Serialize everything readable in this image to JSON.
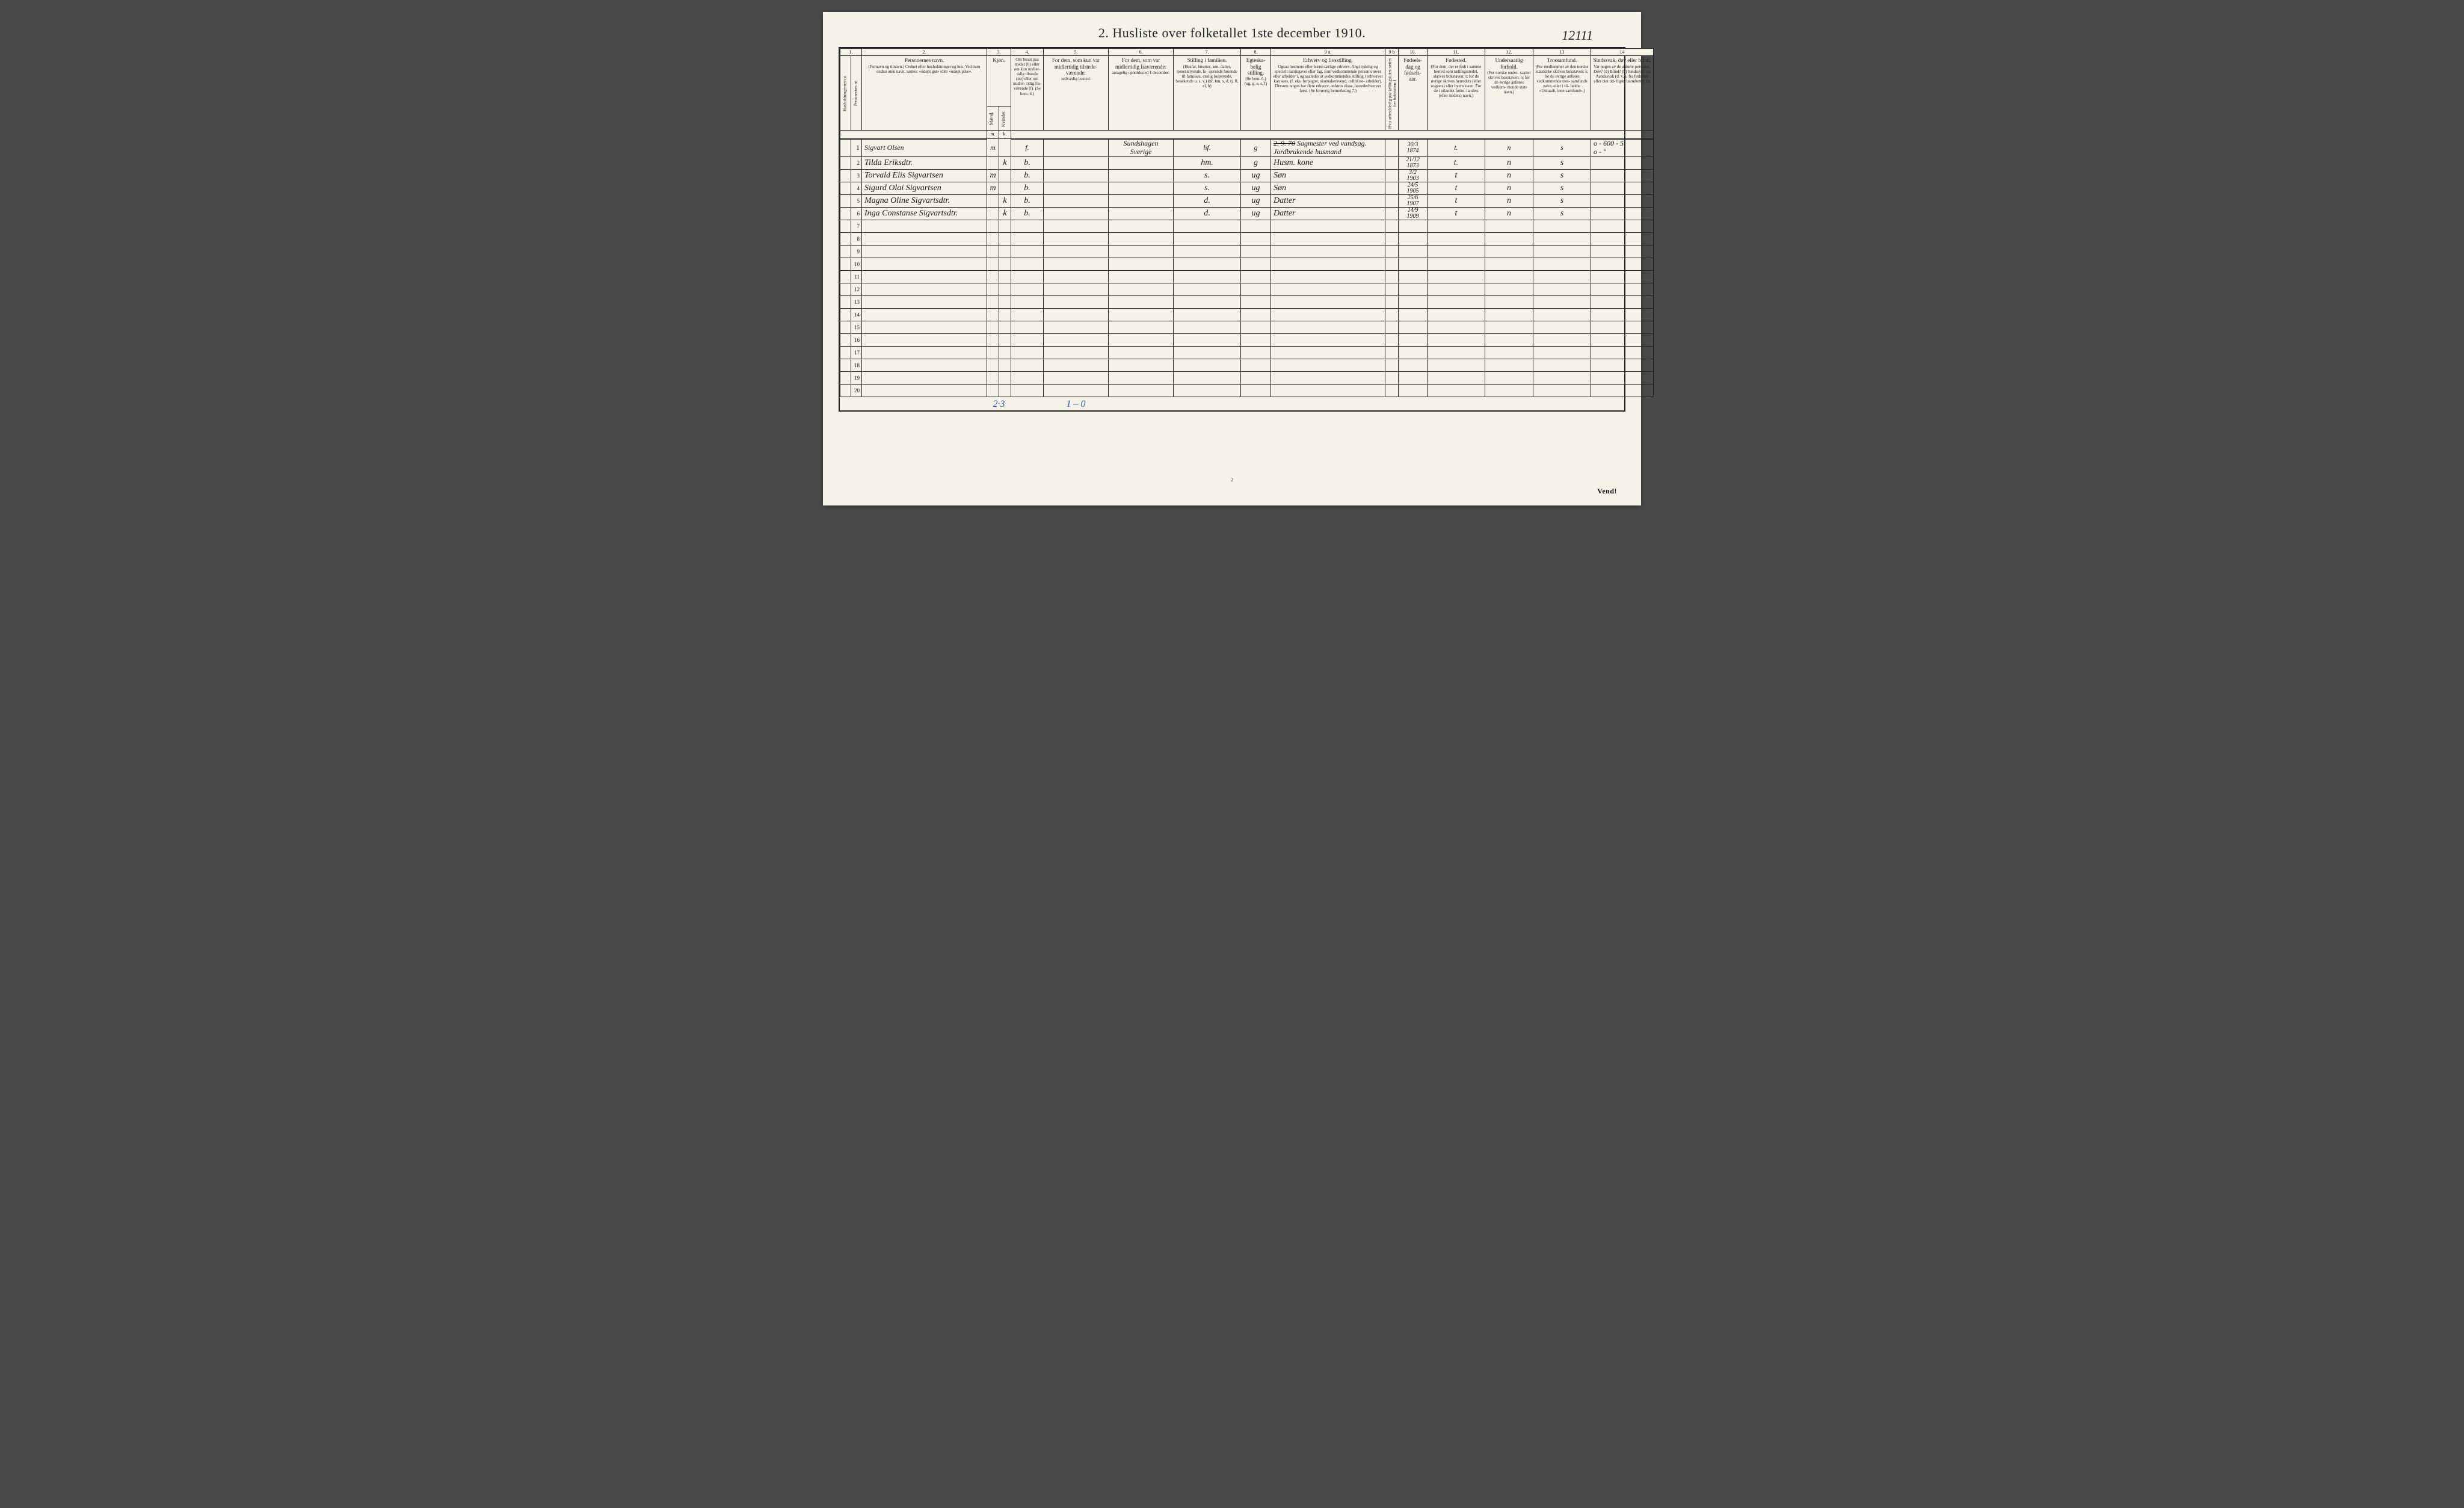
{
  "corner_note": "12111",
  "title": "2.  Husliste over folketallet 1ste december 1910.",
  "colnums": [
    "1.",
    "",
    "2.",
    "3.",
    "4.",
    "5.",
    "6.",
    "7.",
    "8.",
    "9 a.",
    "9 b",
    "10.",
    "11.",
    "12.",
    "13",
    "14"
  ],
  "headers": {
    "c1": {
      "main": "Husholdningernes nr."
    },
    "c1b": {
      "main": "Personernes nr."
    },
    "c2": {
      "main": "Personernes navn.",
      "sub": "(Fornavn og tilnavn.)\nOrdnet efter husholdninger og hus.\nVed barn endnu uten navn, sættes: «udøpt gut»\neller «udøpt pike»."
    },
    "c3": {
      "main": "Kjøn.",
      "sub_left": "Mænd.",
      "sub_right": "Kvinder."
    },
    "c4": {
      "main": "Om bosat\npaa stedet\n(b) eller om\nkun midler-\ntidig tilstede\n(mt) eller\nom midler-\ntidig fra-\nværende (f).\n(Se bem. 4.)"
    },
    "c5": {
      "main": "For dem, som kun var\nmidlertidig tilstede-\nværende:",
      "sub": "sedvanlig bosted."
    },
    "c6": {
      "main": "For dem, som var\nmidlertidig\nfraværende:",
      "sub": "antagelig opholdssted\n1 december."
    },
    "c7": {
      "main": "Stilling i familien.",
      "sub": "(Husfar, husmor, søn,\ndatter, tjenestetyende, lo-\nsjerende hørende til familien,\nenslig losjerende, besøkende\no. s. v.)\n(hf, hm, s, d, tj, fl,\nel, b)"
    },
    "c8": {
      "main": "Egteska-\nbelig\nstilling.",
      "sub": "(Se bem. 6.)\n(ug, g,\ne, s, f)"
    },
    "c9a": {
      "main": "Erhverv og livsstilling.",
      "sub": "Ogsaa husmors eller barns særlige erhverv.\nAngi tydelig og specielt næringsvei eller fag, som\nvedkommende person utøver eller arbeider i,\nog saaledes at vedkommendes stilling i erhvervet kan\nsees, (f. eks. forpagter, skomakersvend, cellulose-\narbeider). Dersom nogen har flere erhverv,\nanføres disse, hovederhvervet først.\n(Se forøvrig bemerkning 7.)"
    },
    "c9b": {
      "main": "Hvis arbeidsledig\npaa tællingstiden sættes\nher bokstaven: l"
    },
    "c10": {
      "main": "Fødsels-\ndag\nog\nfødsels-\naar."
    },
    "c11": {
      "main": "Fødested.",
      "sub": "(For dem, der er født\ni samme herred som\ntællingsstedet,\nskrives bokstaven: t;\nfor de øvrige skrives\nherredets (eller sognets)\neller byens navn.\nFor de i utlandet fødte:\nlandets (eller stedets)\nnavn.)"
    },
    "c12": {
      "main": "Undersaatlig\nforhold.",
      "sub": "(For norske under-\nsaatter skrives\nbokstaven: n;\nfor de øvrige\nanføres vedkom-\nmende stats navn.)"
    },
    "c13": {
      "main": "Trossamfund.",
      "sub": "(For medlemmer av\nden norske statskirke\nskrives bokstaven: s;\nfor de øvrige anføres\nvedkommende tros-\nsamfunds navn, eller i til-\nfælde: «Uttraadt, intet\nsamfund».)"
    },
    "c14": {
      "main": "Sindssvak, døv\neller blind.",
      "sub": "Var nogen av de anførte\npersoner:\nDøv?       (d)\nBlind?     (b)\nSindssyk?  (s)\nAandssvak (d. v. s. fra\nfødselen eller den tid-\nligste barndom)? (a)"
    }
  },
  "sub3": {
    "m": "m.",
    "k": "k."
  },
  "rows": [
    {
      "num": "1",
      "name": "Sigvart Olsen",
      "m": "m",
      "k": "",
      "bos": "f.",
      "c5": "",
      "c6": "Sundshagen\nSverige",
      "fam": "hf.",
      "egte": "g",
      "erhv_strike": "2. 9. 70",
      "erhv": "Sagmester ved vandsag.\nJordbrukende husmand",
      "l": "",
      "dob": "30/3\n1874",
      "fsted": "t.",
      "und": "n",
      "tros": "s",
      "c14": "o - 600 - 5.\no -   \""
    },
    {
      "num": "2",
      "name": "Tilda Eriksdtr.",
      "m": "",
      "k": "k",
      "bos": "b.",
      "c5": "",
      "c6": "",
      "fam": "hm.",
      "egte": "g",
      "erhv": "Husm. kone",
      "l": "",
      "dob": "21/12\n1873",
      "fsted": "t.",
      "und": "n",
      "tros": "s",
      "c14": ""
    },
    {
      "num": "3",
      "name": "Torvald Elis Sigvartsen",
      "m": "m",
      "k": "",
      "bos": "b.",
      "c5": "",
      "c6": "",
      "fam": "s.",
      "egte": "ug",
      "erhv": "Søn",
      "l": "",
      "dob": "3/2\n1903",
      "fsted": "t",
      "und": "n",
      "tros": "s",
      "c14": ""
    },
    {
      "num": "4",
      "name": "Sigurd Olai Sigvartsen",
      "m": "m",
      "k": "",
      "bos": "b.",
      "c5": "",
      "c6": "",
      "fam": "s.",
      "egte": "ug",
      "erhv": "Søn",
      "l": "",
      "dob": "24/5\n1905",
      "fsted": "t",
      "und": "n",
      "tros": "s",
      "c14": ""
    },
    {
      "num": "5",
      "name": "Magna Oline Sigvartsdtr.",
      "m": "",
      "k": "k",
      "bos": "b.",
      "c5": "",
      "c6": "",
      "fam": "d.",
      "egte": "ug",
      "erhv": "Datter",
      "l": "",
      "dob": "25/6\n1907",
      "fsted": "t",
      "und": "n",
      "tros": "s",
      "c14": ""
    },
    {
      "num": "6",
      "name": "Inga Constanse Sigvartsdtr.",
      "m": "",
      "k": "k",
      "bos": "b.",
      "c5": "",
      "c6": "",
      "fam": "d.",
      "egte": "ug",
      "erhv": "Datter",
      "l": "",
      "dob": "14/9\n1909",
      "fsted": "t",
      "und": "n",
      "tros": "s",
      "c14": ""
    }
  ],
  "blank_rows": [
    "7",
    "8",
    "9",
    "10",
    "11",
    "12",
    "13",
    "14",
    "15",
    "16",
    "17",
    "18",
    "19",
    "20"
  ],
  "footer": {
    "col_mk": "2·3",
    "col5": "1 – 0"
  },
  "page_num_bottom": "2",
  "vend": "Vend!",
  "colwidths": {
    "c1": "18px",
    "c1b": "18px",
    "c2": "208px",
    "c3m": "20px",
    "c3k": "20px",
    "c4": "54px",
    "c5": "108px",
    "c6": "108px",
    "c7": "112px",
    "c8": "50px",
    "c9a": "190px",
    "c9b": "22px",
    "c10": "48px",
    "c11": "96px",
    "c12": "80px",
    "c13": "96px",
    "c14": "104px"
  },
  "colors": {
    "paper": "#f5f2e8",
    "ink": "#222",
    "handwriting": "#1a1a1a",
    "blue": "#3355aa"
  }
}
